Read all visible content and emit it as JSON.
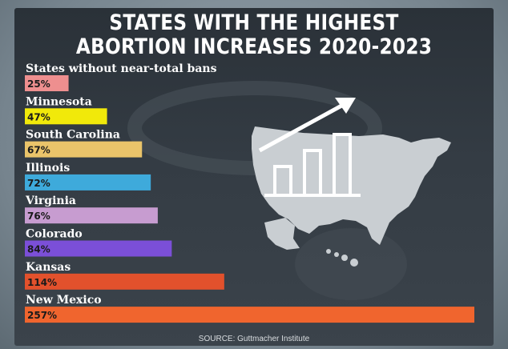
{
  "title_line1": "STATES WITH THE HIGHEST",
  "title_line2": "ABORTION INCREASES 2020-2023",
  "source": "SOURCE: Guttmacher Institute",
  "decor_icon": "usa-map-rising-bar-chart-icon",
  "chart_data": {
    "type": "bar",
    "orientation": "horizontal",
    "categories": [
      "States without near-total bans",
      "Minnesota",
      "South Carolina",
      "Illinois",
      "Virginia",
      "Colorado",
      "Kansas",
      "New Mexico"
    ],
    "values": [
      25,
      47,
      67,
      72,
      76,
      84,
      114,
      257
    ],
    "value_labels": [
      "25%",
      "47%",
      "67%",
      "72%",
      "76%",
      "84%",
      "114%",
      "257%"
    ],
    "colors": [
      "#ee8f8f",
      "#f1e90a",
      "#eac46a",
      "#3eaadb",
      "#c79cd0",
      "#7b4fd8",
      "#e2512c",
      "#f0652e"
    ],
    "xlim": [
      0,
      257
    ],
    "grid": false,
    "legend": "none"
  }
}
